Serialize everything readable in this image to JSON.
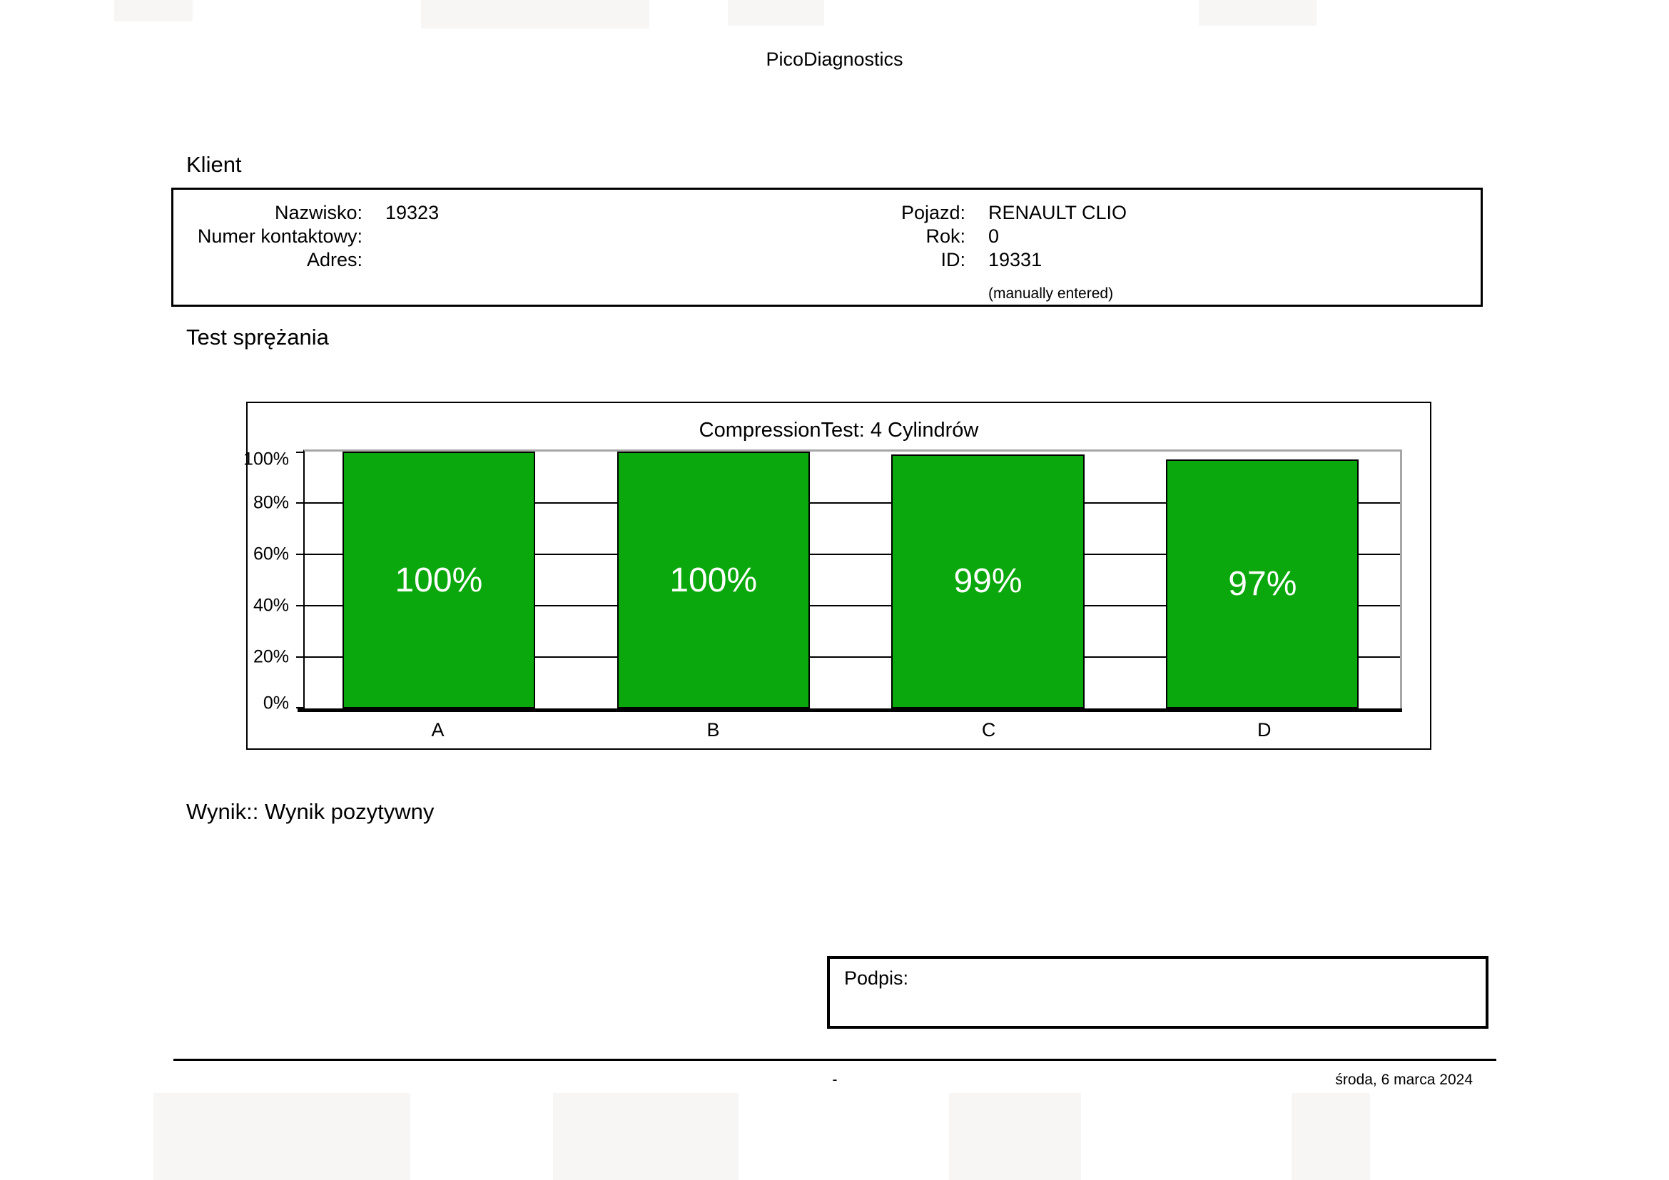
{
  "doc": {
    "app_title": "PicoDiagnostics",
    "footer": {
      "center_mark": "-",
      "date": "środa, 6 marca 2024"
    }
  },
  "client": {
    "section_title": "Klient",
    "left_rows": [
      {
        "label": "Nazwisko:",
        "value": "19323"
      },
      {
        "label": "Numer kontaktowy:",
        "value": ""
      },
      {
        "label": "Adres:",
        "value": ""
      }
    ],
    "right_rows": [
      {
        "label": "Pojazd:",
        "value": "RENAULT CLIO"
      },
      {
        "label": "Rok:",
        "value": "0"
      },
      {
        "label": "ID:",
        "value": "19331"
      }
    ],
    "note": "(manually entered)"
  },
  "test": {
    "section_title": "Test sprężania",
    "result": "Wynik:: Wynik pozytywny"
  },
  "signature": {
    "label": "Podpis:"
  },
  "chart_data": {
    "type": "bar",
    "title": "CompressionTest: 4 Cylindrów",
    "categories": [
      "A",
      "B",
      "C",
      "D"
    ],
    "values": [
      100,
      100,
      99,
      97
    ],
    "value_labels": [
      "100%",
      "100%",
      "99%",
      "97%"
    ],
    "xlabel": "",
    "ylabel": "",
    "ylim": [
      0,
      100
    ],
    "yticks": [
      "100%",
      "80%",
      "60%",
      "40%",
      "20%",
      "0%"
    ],
    "grid": true,
    "legend": "none",
    "bar_color": "#0aa80c",
    "bar_label_color": "#ffffff",
    "frame_color": "#a6a6a6",
    "axis_color": "#000000"
  }
}
